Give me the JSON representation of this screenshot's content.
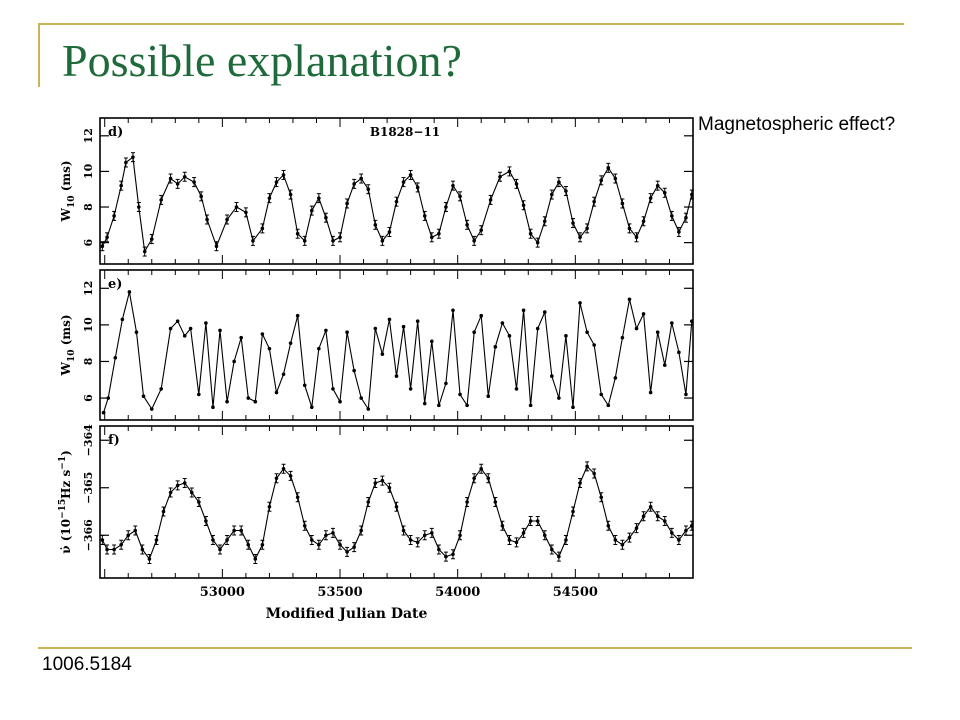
{
  "slide": {
    "title": "Possible explanation?",
    "side_note": "Magnetospheric effect?",
    "reference": "1006.5184"
  },
  "colors": {
    "title": "#1f6a3a",
    "rule": "#c9b458",
    "ink": "#000000"
  },
  "chart_data": [
    {
      "type": "line",
      "panel_label": "d)",
      "title": "B1828−11",
      "ylabel_main": "W",
      "ylabel_sub": "10",
      "ylabel_tail": " (ms)",
      "ylim": [
        4.8,
        13
      ],
      "ytick_values": [
        6,
        8,
        10,
        12
      ],
      "ytick_labels": [
        "6",
        "8",
        "10",
        "12"
      ],
      "xlim": [
        52480,
        55000
      ],
      "x": [
        52490,
        52510,
        52540,
        52570,
        52590,
        52620,
        52645,
        52670,
        52700,
        52740,
        52780,
        52810,
        52840,
        52880,
        52910,
        52935,
        52975,
        53020,
        53060,
        53100,
        53130,
        53170,
        53200,
        53230,
        53260,
        53290,
        53320,
        53350,
        53380,
        53410,
        53440,
        53470,
        53500,
        53530,
        53560,
        53590,
        53620,
        53650,
        53680,
        53710,
        53740,
        53770,
        53800,
        53830,
        53860,
        53890,
        53920,
        53950,
        53980,
        54010,
        54040,
        54070,
        54100,
        54140,
        54180,
        54220,
        54250,
        54280,
        54310,
        54340,
        54370,
        54400,
        54430,
        54460,
        54490,
        54520,
        54550,
        54580,
        54610,
        54640,
        54670,
        54700,
        54730,
        54760,
        54790,
        54820,
        54850,
        54880,
        54910,
        54940,
        54970,
        54995
      ],
      "y": [
        5.8,
        6.3,
        7.5,
        9.2,
        10.5,
        10.8,
        8.0,
        5.5,
        6.2,
        8.4,
        9.6,
        9.3,
        9.7,
        9.4,
        8.6,
        7.3,
        5.8,
        7.3,
        8.0,
        7.7,
        6.1,
        6.8,
        8.5,
        9.4,
        9.8,
        8.7,
        6.5,
        6.1,
        7.8,
        8.5,
        7.4,
        6.1,
        6.3,
        8.2,
        9.3,
        9.6,
        9.0,
        7.0,
        6.1,
        6.6,
        8.3,
        9.4,
        9.8,
        9.1,
        7.5,
        6.3,
        6.5,
        8.0,
        9.2,
        8.6,
        7.0,
        6.1,
        6.7,
        8.4,
        9.7,
        10.0,
        9.3,
        8.1,
        6.5,
        6.0,
        7.2,
        8.7,
        9.4,
        8.9,
        7.1,
        6.3,
        6.8,
        8.3,
        9.5,
        10.2,
        9.6,
        8.2,
        6.8,
        6.3,
        7.2,
        8.5,
        9.2,
        8.8,
        7.5,
        6.6,
        7.4,
        8.7
      ]
    },
    {
      "type": "line",
      "panel_label": "e)",
      "ylabel_main": "W",
      "ylabel_sub": "10",
      "ylabel_tail": " (ms)",
      "ylim": [
        4.8,
        13
      ],
      "ytick_values": [
        6,
        8,
        10,
        12
      ],
      "ytick_labels": [
        "6",
        "8",
        "10",
        "12"
      ],
      "xlim": [
        52480,
        55000
      ],
      "x": [
        52495,
        52515,
        52545,
        52575,
        52605,
        52635,
        52665,
        52700,
        52740,
        52780,
        52810,
        52840,
        52865,
        52900,
        52930,
        52960,
        52990,
        53020,
        53050,
        53080,
        53110,
        53140,
        53170,
        53200,
        53230,
        53260,
        53290,
        53320,
        53350,
        53380,
        53410,
        53440,
        53470,
        53500,
        53530,
        53560,
        53590,
        53620,
        53650,
        53680,
        53710,
        53740,
        53770,
        53800,
        53830,
        53860,
        53890,
        53920,
        53950,
        53980,
        54010,
        54040,
        54070,
        54100,
        54130,
        54160,
        54190,
        54220,
        54250,
        54280,
        54310,
        54340,
        54370,
        54400,
        54430,
        54460,
        54490,
        54520,
        54550,
        54580,
        54610,
        54640,
        54670,
        54700,
        54730,
        54760,
        54790,
        54820,
        54850,
        54880,
        54910,
        54940,
        54970,
        54995
      ],
      "y": [
        5.2,
        6.0,
        8.2,
        10.3,
        11.8,
        9.6,
        6.1,
        5.4,
        6.5,
        9.8,
        10.2,
        9.4,
        9.8,
        6.2,
        10.1,
        5.5,
        9.7,
        5.8,
        8.0,
        9.3,
        6.0,
        5.8,
        9.5,
        8.7,
        6.3,
        7.3,
        9.0,
        10.5,
        6.7,
        5.5,
        8.7,
        9.7,
        6.5,
        5.8,
        9.6,
        7.5,
        6.0,
        5.4,
        9.8,
        8.4,
        10.3,
        7.2,
        9.9,
        6.5,
        10.2,
        5.7,
        9.1,
        5.6,
        6.8,
        10.8,
        6.2,
        5.6,
        9.6,
        10.5,
        6.1,
        8.8,
        10.1,
        9.4,
        6.5,
        10.8,
        5.6,
        9.8,
        10.7,
        7.2,
        6.0,
        9.4,
        5.5,
        11.2,
        9.6,
        8.9,
        6.2,
        5.6,
        7.1,
        9.3,
        11.4,
        9.8,
        10.6,
        6.3,
        9.6,
        7.8,
        10.1,
        8.5,
        6.2,
        10.2
      ]
    },
    {
      "type": "line",
      "panel_label": "f)",
      "ylabel_main": "ν̇ (10",
      "ylabel_sup1": "−15",
      "ylabel_mid": "Hz s",
      "ylabel_sup2": "−1",
      "ylabel_tail": ")",
      "ylim": [
        -366.9,
        -363.7
      ],
      "ytick_values": [
        -366,
        -365,
        -364
      ],
      "ytick_labels": [
        "−366",
        "−365",
        "−364"
      ],
      "xlim": [
        52480,
        55000
      ],
      "xlabel": "Modified Julian Date",
      "xtick_values": [
        53000,
        53500,
        54000,
        54500
      ],
      "xtick_labels": [
        "53000",
        "53500",
        "54000",
        "54500"
      ],
      "x": [
        52490,
        52510,
        52540,
        52570,
        52600,
        52630,
        52660,
        52690,
        52720,
        52750,
        52780,
        52810,
        52840,
        52870,
        52900,
        52930,
        52960,
        52990,
        53020,
        53050,
        53080,
        53110,
        53140,
        53170,
        53200,
        53230,
        53260,
        53290,
        53320,
        53350,
        53380,
        53410,
        53440,
        53470,
        53500,
        53530,
        53560,
        53590,
        53620,
        53650,
        53680,
        53710,
        53740,
        53770,
        53800,
        53830,
        53860,
        53890,
        53920,
        53950,
        53980,
        54010,
        54040,
        54070,
        54100,
        54130,
        54160,
        54190,
        54220,
        54250,
        54280,
        54310,
        54340,
        54370,
        54400,
        54430,
        54460,
        54490,
        54520,
        54550,
        54580,
        54610,
        54640,
        54670,
        54700,
        54730,
        54760,
        54790,
        54820,
        54850,
        54880,
        54910,
        54940,
        54970,
        54995
      ],
      "y": [
        -366.1,
        -366.3,
        -366.3,
        -366.2,
        -366.0,
        -365.9,
        -366.3,
        -366.5,
        -366.1,
        -365.5,
        -365.1,
        -364.95,
        -364.9,
        -365.1,
        -365.3,
        -365.7,
        -366.1,
        -366.3,
        -366.1,
        -365.9,
        -365.9,
        -366.2,
        -366.5,
        -366.2,
        -365.4,
        -364.8,
        -364.6,
        -364.75,
        -365.2,
        -365.8,
        -366.1,
        -366.2,
        -366.0,
        -365.95,
        -366.2,
        -366.35,
        -366.25,
        -365.9,
        -365.3,
        -364.9,
        -364.85,
        -365.0,
        -365.4,
        -365.9,
        -366.1,
        -366.15,
        -366.0,
        -365.95,
        -366.3,
        -366.45,
        -366.4,
        -366.0,
        -365.3,
        -364.8,
        -364.6,
        -364.8,
        -365.3,
        -365.8,
        -366.1,
        -366.15,
        -365.95,
        -365.7,
        -365.7,
        -366.0,
        -366.3,
        -366.45,
        -366.1,
        -365.5,
        -364.9,
        -364.55,
        -364.7,
        -365.2,
        -365.8,
        -366.1,
        -366.2,
        -366.05,
        -365.85,
        -365.6,
        -365.4,
        -365.6,
        -365.7,
        -365.95,
        -366.1,
        -365.9,
        -365.8
      ]
    }
  ]
}
